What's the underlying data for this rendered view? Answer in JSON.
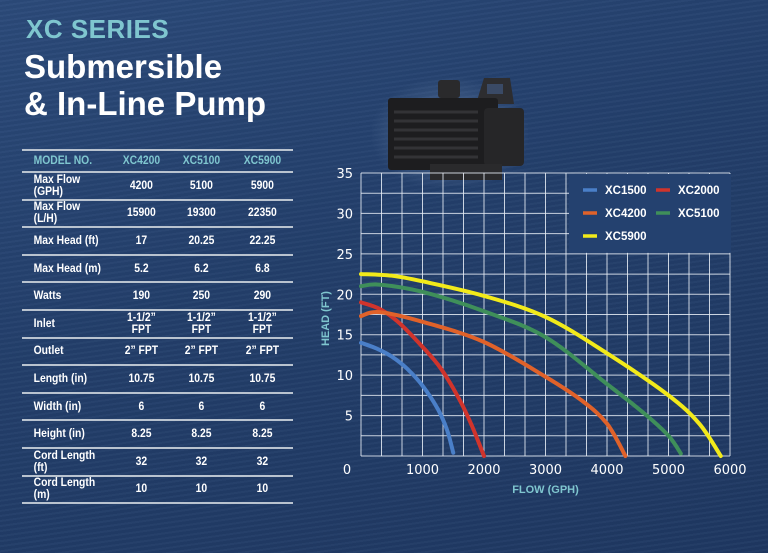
{
  "header": {
    "series": "XC SERIES",
    "title_line1": "Submersible",
    "title_line2": "& In-Line Pump"
  },
  "specs": {
    "columns": [
      "MODEL NO.",
      "XC4200",
      "XC5100",
      "XC5900"
    ],
    "rows": [
      [
        "Max Flow (GPH)",
        "4200",
        "5100",
        "5900"
      ],
      [
        "Max Flow (L/H)",
        "15900",
        "19300",
        "22350"
      ],
      [
        "Max Head (ft)",
        "17",
        "20.25",
        "22.25"
      ],
      [
        "Max Head (m)",
        "5.2",
        "6.2",
        "6.8"
      ],
      [
        "Watts",
        "190",
        "250",
        "290"
      ],
      [
        "Inlet",
        "1-1/2” FPT",
        "1-1/2” FPT",
        "1-1/2” FPT"
      ],
      [
        "Outlet",
        "2” FPT",
        "2” FPT",
        "2” FPT"
      ],
      [
        "Length (in)",
        "10.75",
        "10.75",
        "10.75"
      ],
      [
        "Width (in)",
        "6",
        "6",
        "6"
      ],
      [
        "Height (in)",
        "8.25",
        "8.25",
        "8.25"
      ],
      [
        "Cord Length (ft)",
        "32",
        "32",
        "32"
      ],
      [
        "Cord Length (m)",
        "10",
        "10",
        "10"
      ]
    ]
  },
  "colors": {
    "accent": "#7fc6cf",
    "background": "#233f6b"
  },
  "chart_data": {
    "type": "line",
    "xlabel": "FLOW (GPH)",
    "ylabel": "HEAD (FT)",
    "xlim": [
      0,
      6000
    ],
    "ylim": [
      0,
      35
    ],
    "xticks": [
      0,
      1000,
      2000,
      3000,
      4000,
      5000,
      6000
    ],
    "yticks": [
      5,
      10,
      15,
      20,
      25,
      30,
      35
    ],
    "grid": true,
    "legend": "top-right",
    "series": [
      {
        "name": "XC1500",
        "color": "#4a7fc8",
        "x": [
          0,
          250,
          500,
          750,
          1000,
          1250,
          1400,
          1500
        ],
        "y": [
          14,
          13.3,
          12.3,
          10.8,
          8.7,
          5.8,
          3.2,
          0.4
        ]
      },
      {
        "name": "XC2000",
        "color": "#d0342c",
        "x": [
          0,
          300,
          600,
          1000,
          1300,
          1600,
          1800,
          2000
        ],
        "y": [
          19,
          18.2,
          16.6,
          13.5,
          10.8,
          7,
          3.8,
          0
        ]
      },
      {
        "name": "XC4200",
        "color": "#e0622a",
        "x": [
          0,
          300,
          1000,
          2000,
          3000,
          3600,
          4000,
          4300
        ],
        "y": [
          17.3,
          17.8,
          16.6,
          14.1,
          9.8,
          6.8,
          4,
          0
        ]
      },
      {
        "name": "XC5100",
        "color": "#3f8f5a",
        "x": [
          0,
          300,
          1000,
          2000,
          3000,
          4000,
          4600,
          5000,
          5200
        ],
        "y": [
          21,
          21.2,
          20.3,
          17.9,
          14.7,
          8.9,
          5.3,
          2.5,
          0.3
        ]
      },
      {
        "name": "XC5900",
        "color": "#f2ea1a",
        "x": [
          0,
          500,
          1000,
          2000,
          3000,
          4000,
          5000,
          5500,
          5850
        ],
        "y": [
          22.5,
          22.3,
          21.6,
          19.8,
          17.2,
          12.7,
          7.5,
          4,
          0
        ]
      }
    ]
  }
}
